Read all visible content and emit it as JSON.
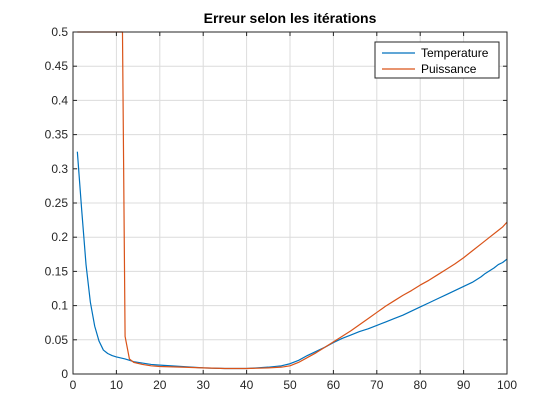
{
  "chart_data": {
    "type": "line",
    "title": "Erreur selon les itérations",
    "xlabel": "",
    "ylabel": "",
    "xlim": [
      0,
      100
    ],
    "ylim": [
      0,
      0.5
    ],
    "xticks": [
      0,
      10,
      20,
      30,
      40,
      50,
      60,
      70,
      80,
      90,
      100
    ],
    "yticks": [
      0,
      0.05,
      0.1,
      0.15,
      0.2,
      0.25,
      0.3,
      0.35,
      0.4,
      0.45,
      0.5
    ],
    "xtick_labels": [
      "0",
      "10",
      "20",
      "30",
      "40",
      "50",
      "60",
      "70",
      "80",
      "90",
      "100"
    ],
    "ytick_labels": [
      "0",
      "0.05",
      "0.1",
      "0.15",
      "0.2",
      "0.25",
      "0.3",
      "0.35",
      "0.4",
      "0.45",
      "0.5"
    ],
    "grid": true,
    "legend_position": "top-right",
    "series": [
      {
        "name": "Temperature",
        "color": "#0072BD",
        "x": [
          1,
          2,
          3,
          4,
          5,
          6,
          7,
          8,
          9,
          10,
          12,
          14,
          16,
          18,
          20,
          25,
          30,
          35,
          40,
          45,
          48,
          50,
          52,
          54,
          56,
          58,
          60,
          62,
          64,
          66,
          68,
          70,
          72,
          74,
          76,
          78,
          80,
          82,
          84,
          86,
          88,
          90,
          92,
          94,
          95,
          96,
          97,
          98,
          99,
          100
        ],
        "values": [
          0.325,
          0.24,
          0.16,
          0.105,
          0.07,
          0.048,
          0.035,
          0.03,
          0.027,
          0.025,
          0.022,
          0.018,
          0.016,
          0.014,
          0.013,
          0.011,
          0.009,
          0.008,
          0.008,
          0.01,
          0.012,
          0.015,
          0.02,
          0.027,
          0.033,
          0.039,
          0.046,
          0.052,
          0.057,
          0.062,
          0.066,
          0.071,
          0.076,
          0.081,
          0.086,
          0.092,
          0.098,
          0.104,
          0.11,
          0.116,
          0.122,
          0.128,
          0.134,
          0.142,
          0.147,
          0.151,
          0.155,
          0.16,
          0.163,
          0.168
        ]
      },
      {
        "name": "Puissance",
        "color": "#D95319",
        "x": [
          1,
          2,
          3,
          4,
          5,
          6,
          7,
          8,
          9,
          10,
          11,
          11.4,
          12,
          13,
          14,
          16,
          18,
          20,
          25,
          30,
          35,
          40,
          45,
          48,
          50,
          52,
          54,
          56,
          58,
          60,
          62,
          64,
          66,
          68,
          70,
          72,
          74,
          76,
          78,
          80,
          82,
          84,
          86,
          88,
          90,
          92,
          94,
          96,
          98,
          99,
          100
        ],
        "values": [
          0.5,
          0.5,
          0.5,
          0.5,
          0.5,
          0.5,
          0.5,
          0.5,
          0.5,
          0.5,
          0.5,
          0.5,
          0.055,
          0.022,
          0.017,
          0.014,
          0.012,
          0.011,
          0.01,
          0.009,
          0.008,
          0.008,
          0.009,
          0.01,
          0.012,
          0.017,
          0.024,
          0.031,
          0.039,
          0.047,
          0.055,
          0.063,
          0.072,
          0.081,
          0.09,
          0.099,
          0.107,
          0.115,
          0.122,
          0.13,
          0.137,
          0.145,
          0.153,
          0.161,
          0.17,
          0.18,
          0.19,
          0.2,
          0.21,
          0.215,
          0.222
        ]
      }
    ]
  }
}
